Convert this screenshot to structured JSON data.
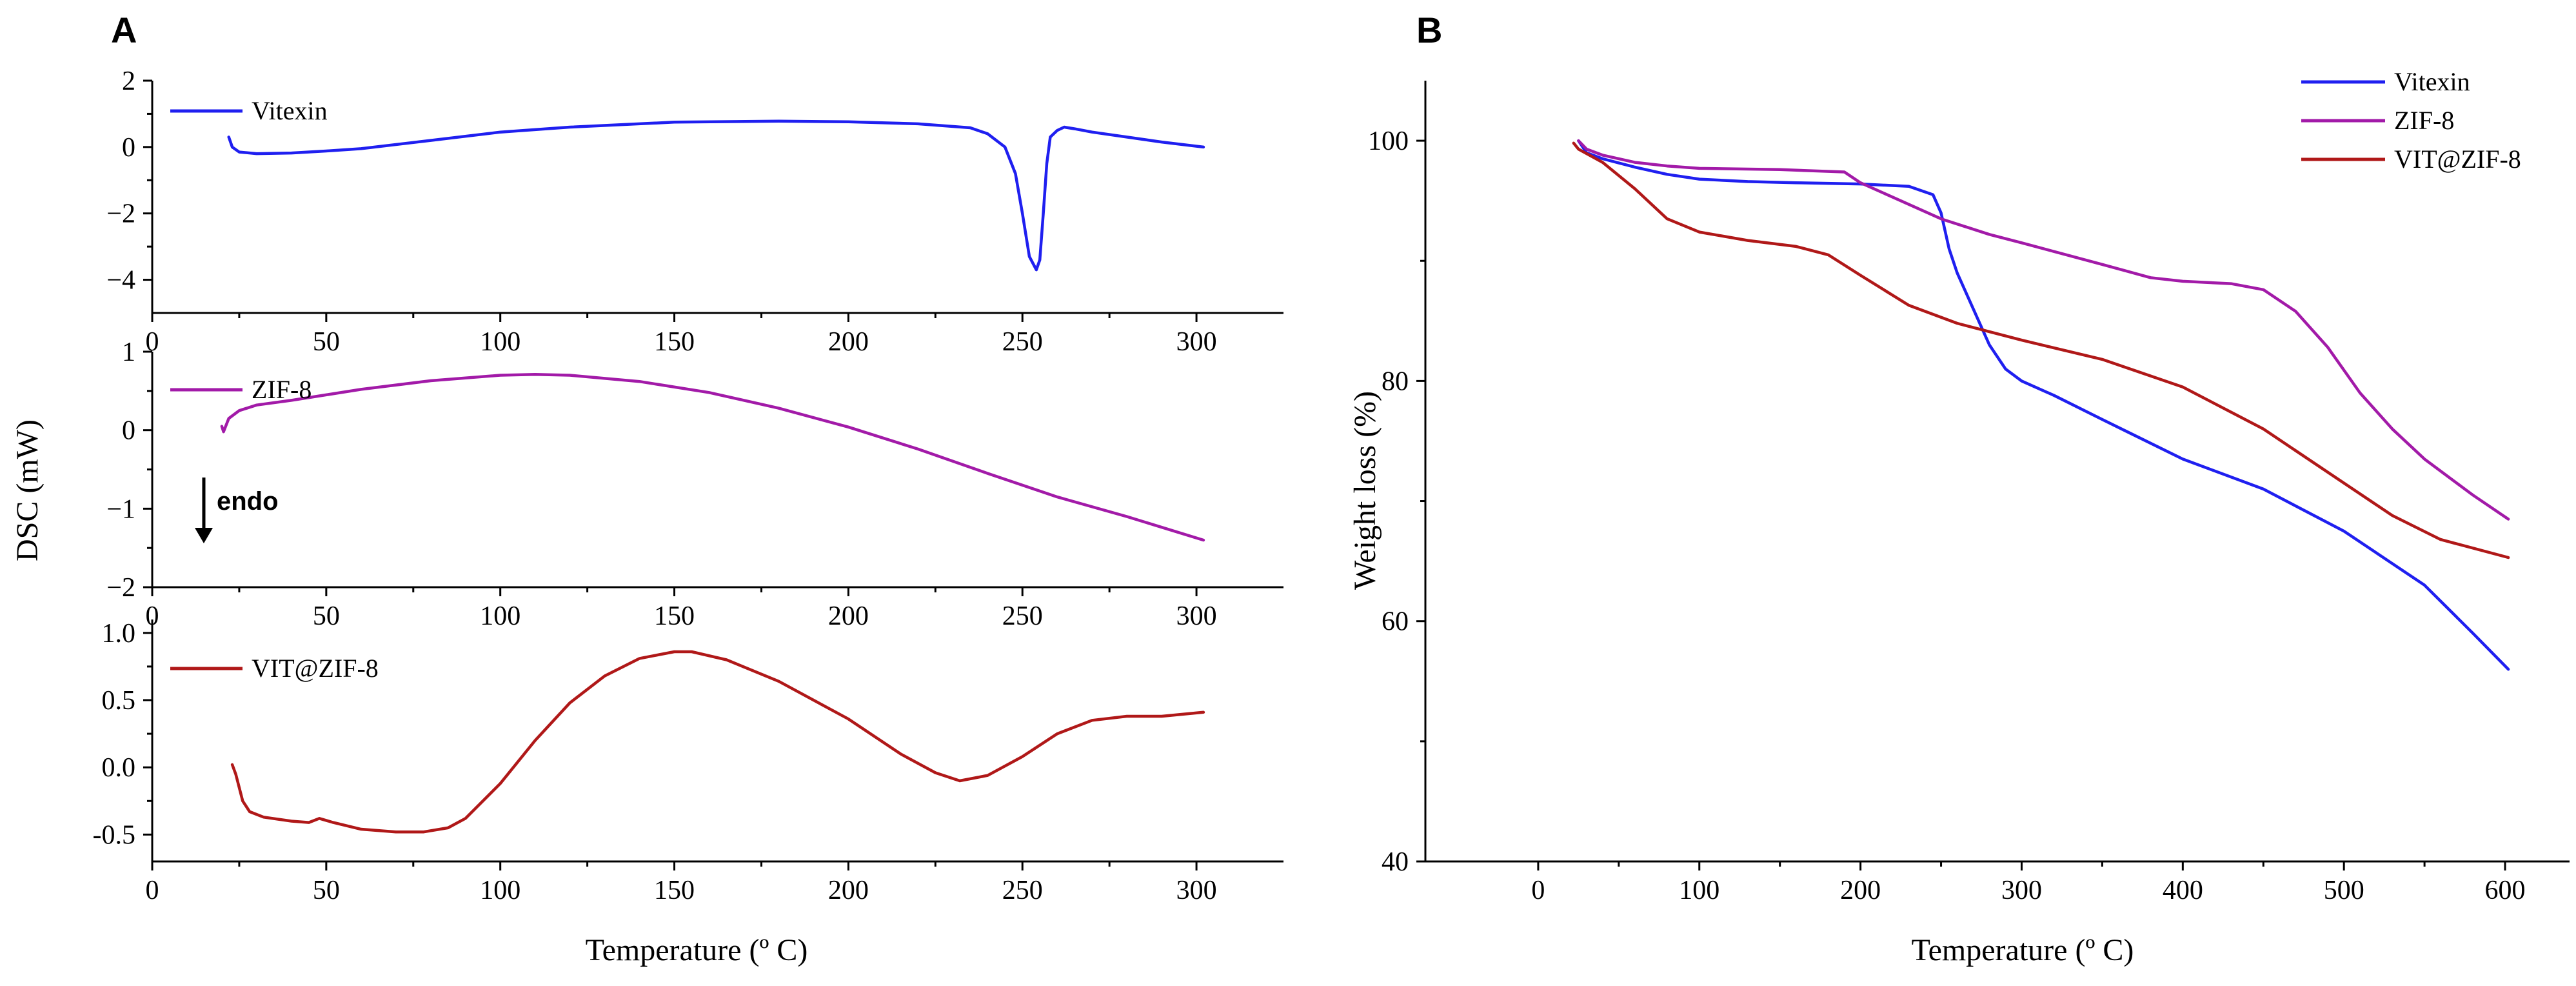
{
  "colors": {
    "vitexin": "#1f1ff0",
    "zif8": "#a21aa8",
    "vit_zif8": "#b01818"
  },
  "panel_labels": [
    "A",
    "B"
  ],
  "chart_data": [
    {
      "type": "line",
      "panel": "A-top",
      "ylabel": "DSC (mW)",
      "xlabel": "",
      "xlim": [
        0,
        325
      ],
      "ylim": [
        -5,
        2
      ],
      "xticks": [
        0,
        50,
        100,
        150,
        200,
        250,
        300
      ],
      "yticks": [
        2,
        0,
        -2,
        -4
      ],
      "ytick_labels": [
        "2",
        "0",
        "−2",
        "−4"
      ],
      "series": [
        {
          "name": "Vitexin",
          "color": "#1f1ff0",
          "x": [
            22,
            23,
            25,
            30,
            40,
            50,
            60,
            80,
            100,
            120,
            150,
            180,
            200,
            220,
            235,
            240,
            245,
            248,
            250,
            252,
            254,
            255,
            256,
            257,
            258,
            260,
            262,
            265,
            270,
            280,
            290,
            302
          ],
          "y": [
            0.3,
            0.0,
            -0.15,
            -0.2,
            -0.18,
            -0.12,
            -0.05,
            0.2,
            0.45,
            0.6,
            0.75,
            0.78,
            0.76,
            0.7,
            0.58,
            0.4,
            0.0,
            -0.8,
            -2.0,
            -3.3,
            -3.7,
            -3.4,
            -2.0,
            -0.5,
            0.3,
            0.5,
            0.6,
            0.55,
            0.45,
            0.3,
            0.15,
            0.0
          ]
        }
      ]
    },
    {
      "type": "line",
      "panel": "A-middle",
      "ylabel": "DSC (mW)",
      "xlabel": "",
      "xlim": [
        0,
        325
      ],
      "ylim": [
        -2,
        1
      ],
      "xticks": [
        0,
        50,
        100,
        150,
        200,
        250,
        300
      ],
      "yticks": [
        1,
        0,
        -1,
        -2
      ],
      "ytick_labels": [
        "1",
        "0",
        "−1",
        "−2"
      ],
      "annotation": "endo",
      "series": [
        {
          "name": "ZIF-8",
          "color": "#a21aa8",
          "x": [
            20,
            20.5,
            22,
            25,
            30,
            40,
            50,
            60,
            80,
            100,
            110,
            120,
            140,
            160,
            180,
            200,
            220,
            240,
            260,
            280,
            302
          ],
          "y": [
            0.05,
            -0.02,
            0.15,
            0.25,
            0.32,
            0.38,
            0.45,
            0.52,
            0.63,
            0.7,
            0.71,
            0.7,
            0.62,
            0.48,
            0.28,
            0.04,
            -0.24,
            -0.55,
            -0.85,
            -1.1,
            -1.4
          ]
        }
      ]
    },
    {
      "type": "line",
      "panel": "A-bottom",
      "ylabel": "DSC (mW)",
      "xlabel": "Temperature (º C)",
      "xlim": [
        0,
        325
      ],
      "ylim": [
        -0.7,
        1.1
      ],
      "xticks": [
        0,
        50,
        100,
        150,
        200,
        250,
        300
      ],
      "yticks": [
        1.0,
        0.5,
        0.0,
        -0.5
      ],
      "ytick_labels": [
        "1.0",
        "0.5",
        "0.0",
        "-0.5"
      ],
      "series": [
        {
          "name": "VIT@ZIF-8",
          "color": "#b01818",
          "x": [
            23,
            24,
            26,
            28,
            32,
            40,
            45,
            48,
            52,
            60,
            70,
            78,
            85,
            90,
            100,
            110,
            120,
            130,
            140,
            150,
            155,
            165,
            180,
            200,
            215,
            225,
            232,
            240,
            250,
            260,
            270,
            280,
            290,
            302
          ],
          "y": [
            0.02,
            -0.05,
            -0.25,
            -0.33,
            -0.37,
            -0.4,
            -0.41,
            -0.38,
            -0.41,
            -0.46,
            -0.48,
            -0.48,
            -0.45,
            -0.38,
            -0.12,
            0.2,
            0.48,
            0.68,
            0.81,
            0.86,
            0.86,
            0.8,
            0.64,
            0.36,
            0.1,
            -0.04,
            -0.1,
            -0.06,
            0.08,
            0.25,
            0.35,
            0.38,
            0.38,
            0.41
          ]
        }
      ]
    },
    {
      "type": "line",
      "panel": "B",
      "ylabel": "Weight loss (%)",
      "xlabel": "Temperature (º C)",
      "xlim": [
        -70,
        640
      ],
      "ylim": [
        40,
        105
      ],
      "xticks": [
        0,
        100,
        200,
        300,
        400,
        500,
        600
      ],
      "yticks": [
        40,
        60,
        80,
        100
      ],
      "legend": "top-right",
      "series": [
        {
          "name": "Vitexin",
          "color": "#1f1ff0",
          "x": [
            25,
            30,
            40,
            60,
            80,
            100,
            130,
            160,
            200,
            230,
            245,
            250,
            255,
            260,
            270,
            280,
            290,
            300,
            320,
            350,
            400,
            450,
            500,
            550,
            580,
            602
          ],
          "y": [
            100,
            99.0,
            98.5,
            97.8,
            97.2,
            96.8,
            96.6,
            96.5,
            96.4,
            96.2,
            95.5,
            94.0,
            91.0,
            89.0,
            86.0,
            83.0,
            81.0,
            80.0,
            78.8,
            76.8,
            73.5,
            71.0,
            67.5,
            63.0,
            59.0,
            56.0
          ]
        },
        {
          "name": "ZIF-8",
          "color": "#a21aa8",
          "x": [
            25,
            30,
            40,
            60,
            80,
            100,
            150,
            190,
            200,
            220,
            250,
            280,
            300,
            350,
            380,
            400,
            430,
            450,
            470,
            490,
            510,
            530,
            550,
            580,
            602
          ],
          "y": [
            100,
            99.3,
            98.8,
            98.2,
            97.9,
            97.7,
            97.6,
            97.4,
            96.5,
            95.3,
            93.5,
            92.2,
            91.5,
            89.7,
            88.6,
            88.3,
            88.1,
            87.6,
            85.8,
            82.8,
            79.0,
            76.0,
            73.5,
            70.5,
            68.5
          ]
        },
        {
          "name": "VIT@ZIF-8",
          "color": "#b01818",
          "x": [
            22,
            25,
            40,
            60,
            80,
            100,
            130,
            160,
            180,
            200,
            230,
            260,
            300,
            350,
            400,
            450,
            500,
            530,
            560,
            602
          ],
          "y": [
            99.8,
            99.3,
            98.2,
            96.0,
            93.5,
            92.4,
            91.7,
            91.2,
            90.5,
            88.8,
            86.3,
            84.8,
            83.4,
            81.8,
            79.5,
            76.0,
            71.5,
            68.8,
            66.8,
            65.3
          ]
        }
      ]
    }
  ]
}
